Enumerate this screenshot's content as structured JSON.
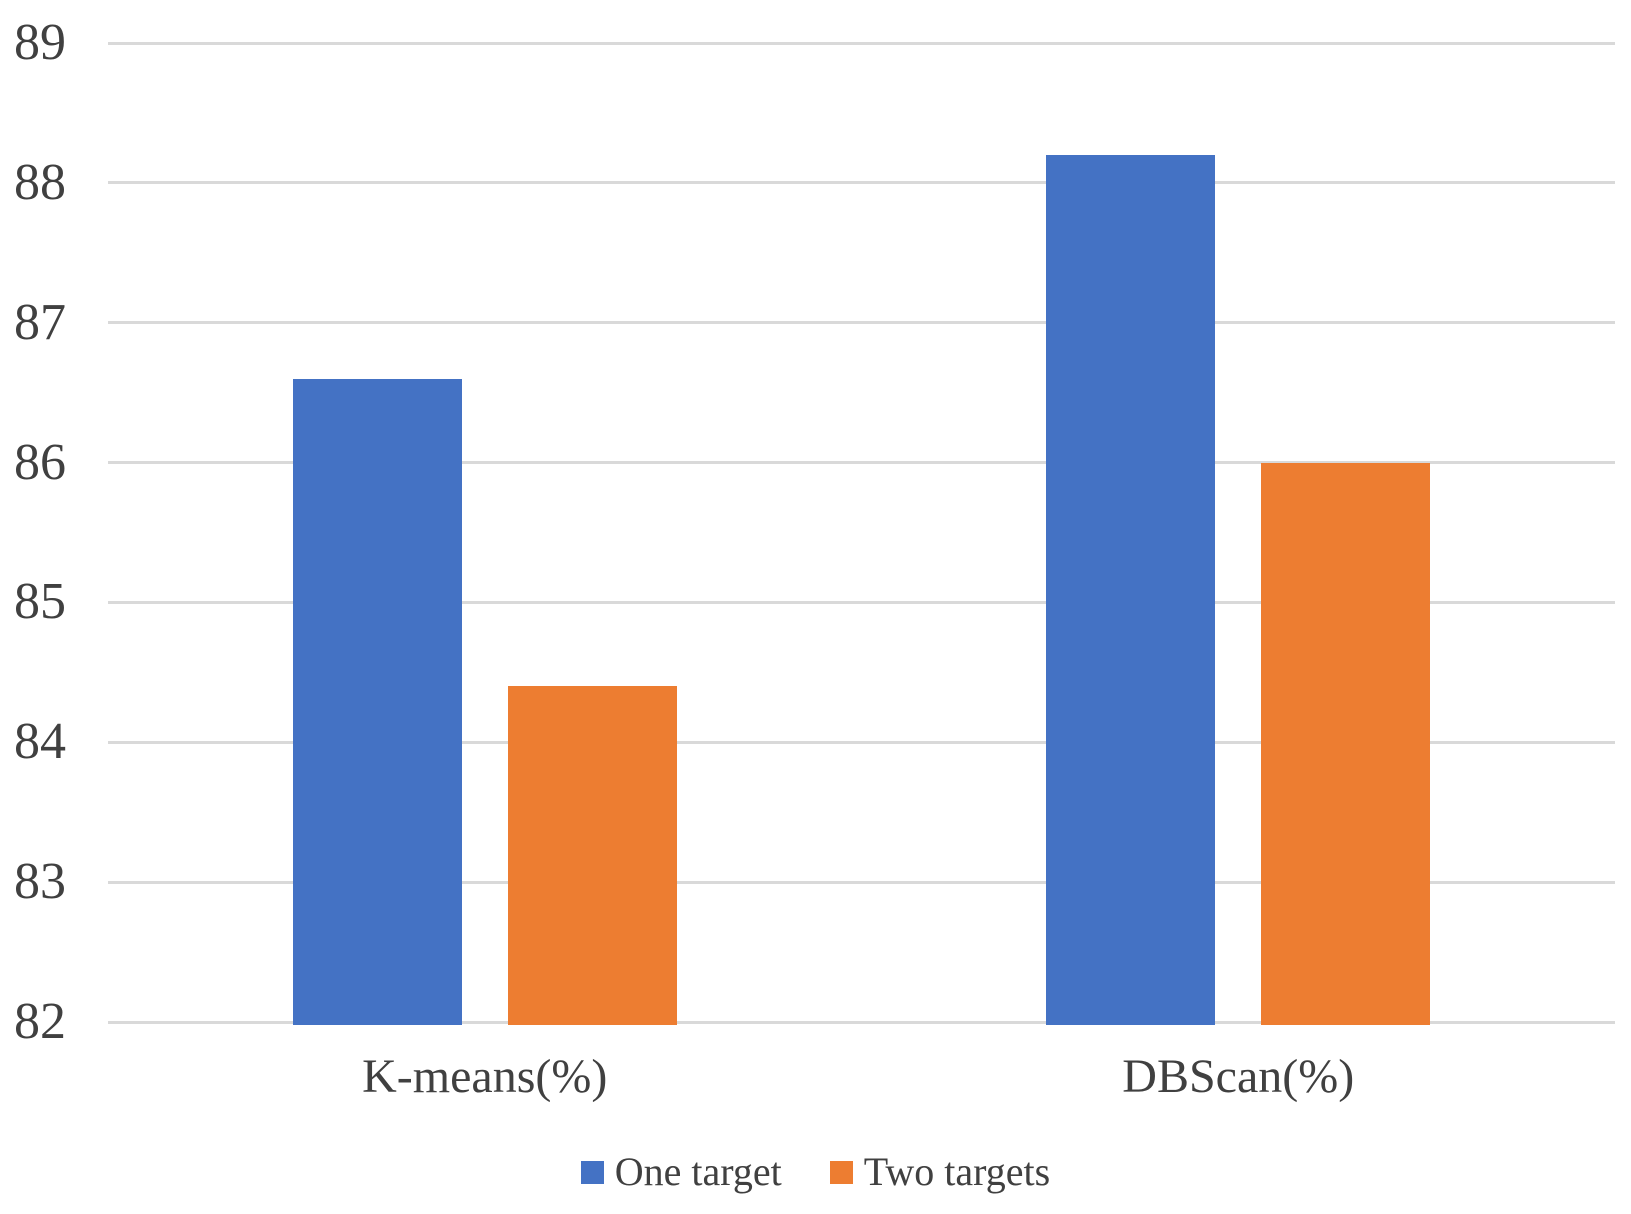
{
  "chart_data": {
    "type": "bar",
    "title": "",
    "categories": [
      "K-means(%)",
      "DBScan(%)"
    ],
    "series": [
      {
        "name": "One target",
        "color": "#4472C4",
        "values": [
          86.6,
          88.2
        ]
      },
      {
        "name": "Two targets",
        "color": "#ED7D31",
        "values": [
          84.4,
          86.0
        ]
      }
    ],
    "xlabel": "",
    "ylabel": "",
    "ylim": [
      82,
      89
    ],
    "yticks": [
      82,
      83,
      84,
      85,
      86,
      87,
      88,
      89
    ],
    "grid": true,
    "gridline_color": "#D9D9D9",
    "text_color": "#404040",
    "legend_position": "bottom"
  }
}
